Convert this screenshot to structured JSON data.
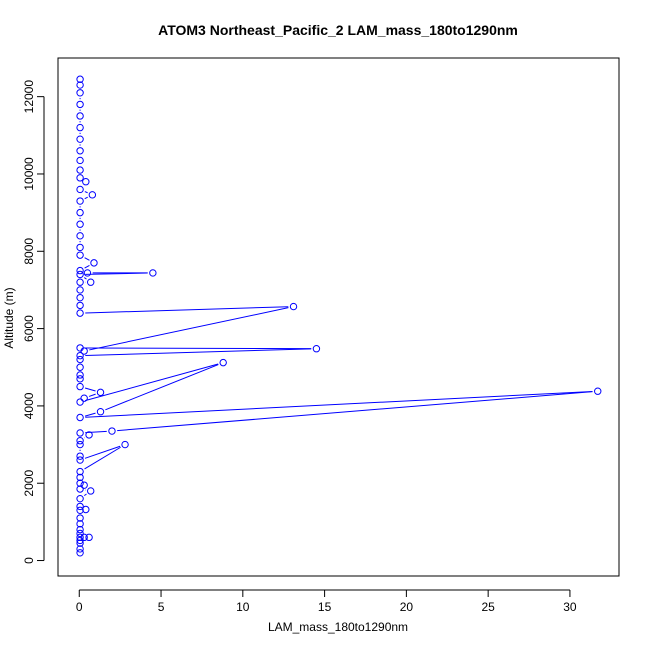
{
  "chart_data": {
    "type": "line",
    "title": "ATOM3 Northeast_Pacific_2 LAM_mass_180to1290nm",
    "xlabel": "LAM_mass_180to1290nm",
    "ylabel": "Altitude (m)",
    "xlim": [
      -1.3,
      33.0
    ],
    "ylim": [
      -400,
      13000
    ],
    "xticks": [
      0,
      5,
      10,
      15,
      20,
      25,
      30
    ],
    "yticks": [
      0,
      2000,
      4000,
      6000,
      8000,
      10000,
      12000
    ],
    "grid": false,
    "marker": "open-circle",
    "color": "#0000ff",
    "series": [
      {
        "points": [
          [
            0.05,
            200
          ],
          [
            0.05,
            300
          ],
          [
            0.05,
            450
          ],
          [
            0.05,
            520
          ],
          [
            0.05,
            600
          ],
          [
            0.3,
            600
          ],
          [
            0.6,
            600
          ],
          [
            0.05,
            700
          ],
          [
            0.05,
            800
          ],
          [
            0.05,
            950
          ],
          [
            0.05,
            1100
          ],
          [
            0.05,
            1300
          ],
          [
            0.4,
            1320
          ],
          [
            0.05,
            1400
          ],
          [
            0.05,
            1600
          ],
          [
            0.7,
            1800
          ],
          [
            0.05,
            1850
          ],
          [
            0.05,
            2000
          ],
          [
            0.3,
            1950
          ],
          [
            0.05,
            2150
          ],
          [
            0.05,
            2300
          ],
          [
            2.8,
            3000
          ],
          [
            0.05,
            2600
          ],
          [
            0.05,
            2700
          ],
          [
            0.05,
            3000
          ],
          [
            0.05,
            3100
          ],
          [
            0.6,
            3250
          ],
          [
            0.05,
            3300
          ],
          [
            2.0,
            3350
          ],
          [
            31.7,
            4380
          ],
          [
            0.05,
            3700
          ],
          [
            1.3,
            3850
          ],
          [
            8.8,
            5120
          ],
          [
            0.05,
            4100
          ],
          [
            0.3,
            4200
          ],
          [
            1.3,
            4350
          ],
          [
            0.05,
            4500
          ],
          [
            0.05,
            4700
          ],
          [
            0.05,
            4800
          ],
          [
            0.05,
            5000
          ],
          [
            0.05,
            5200
          ],
          [
            0.05,
            5300
          ],
          [
            14.5,
            5480
          ],
          [
            0.05,
            5500
          ],
          [
            0.3,
            5420
          ],
          [
            13.1,
            6570
          ],
          [
            0.05,
            6400
          ],
          [
            0.05,
            6600
          ],
          [
            0.05,
            6800
          ],
          [
            0.05,
            7000
          ],
          [
            0.05,
            7200
          ],
          [
            0.7,
            7200
          ],
          [
            0.05,
            7400
          ],
          [
            4.5,
            7440
          ],
          [
            0.5,
            7440
          ],
          [
            0.05,
            7500
          ],
          [
            0.9,
            7700
          ],
          [
            0.05,
            7900
          ],
          [
            0.05,
            8100
          ],
          [
            0.05,
            8400
          ],
          [
            0.05,
            8700
          ],
          [
            0.05,
            9000
          ],
          [
            0.05,
            9300
          ],
          [
            0.8,
            9460
          ],
          [
            0.05,
            9600
          ],
          [
            0.4,
            9800
          ],
          [
            0.05,
            9900
          ],
          [
            0.05,
            10100
          ],
          [
            0.05,
            10350
          ],
          [
            0.05,
            10600
          ],
          [
            0.05,
            10900
          ],
          [
            0.05,
            11200
          ],
          [
            0.05,
            11500
          ],
          [
            0.05,
            11800
          ],
          [
            0.05,
            12100
          ],
          [
            0.05,
            12300
          ],
          [
            0.05,
            12450
          ]
        ]
      }
    ]
  }
}
